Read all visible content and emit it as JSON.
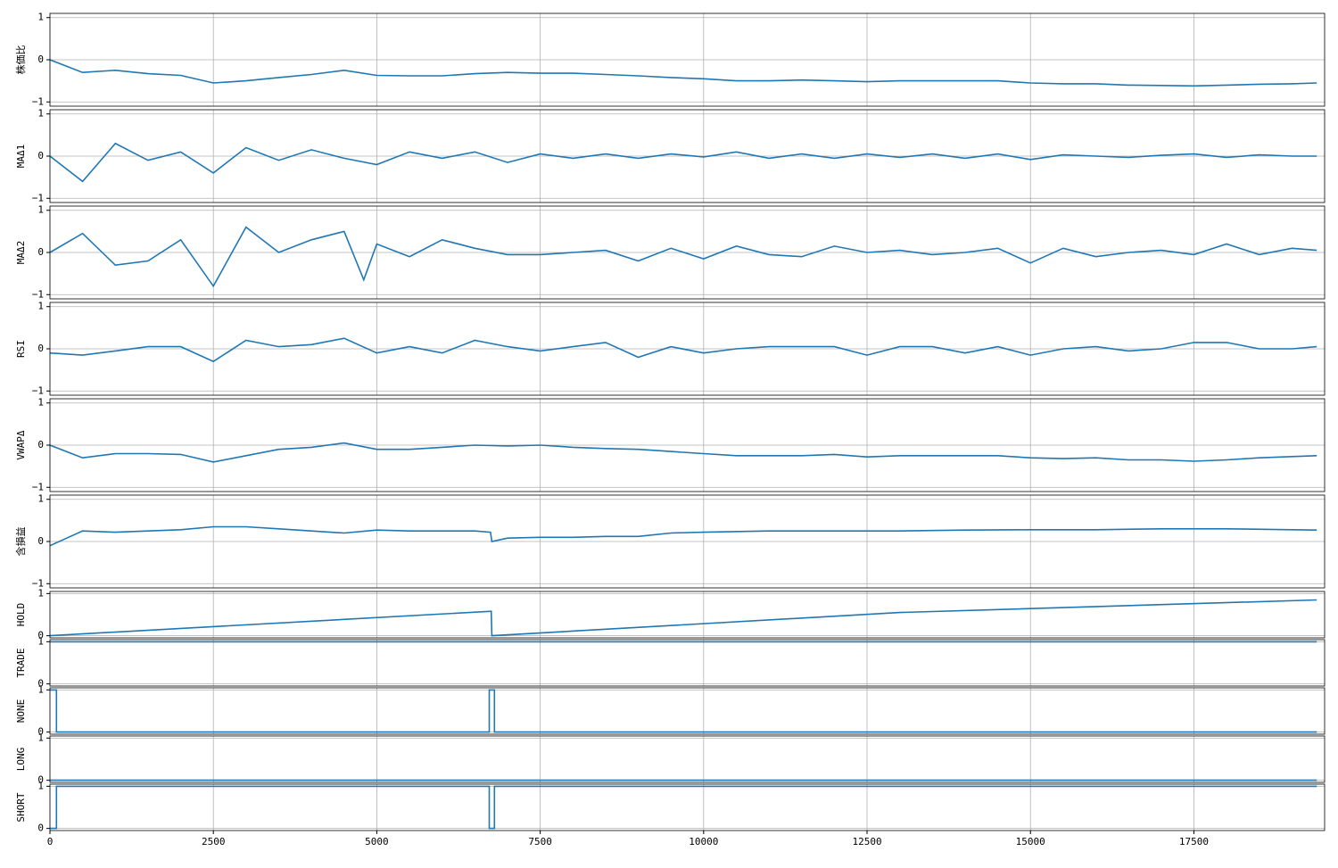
{
  "chart_data": [
    {
      "type": "line",
      "ylabel": "株価比",
      "color": "#1f77b4",
      "grid": true,
      "x": [
        0,
        500,
        1000,
        1500,
        2000,
        2500,
        3000,
        3500,
        4000,
        4500,
        5000,
        5500,
        6000,
        6500,
        7000,
        7500,
        8000,
        8500,
        9000,
        9500,
        10000,
        10500,
        11000,
        11500,
        12000,
        12500,
        13000,
        13500,
        14000,
        14500,
        15000,
        15500,
        16000,
        16500,
        17000,
        17500,
        18000,
        18500,
        19000,
        19380
      ],
      "values": [
        0,
        -0.3,
        -0.25,
        -0.33,
        -0.37,
        -0.55,
        -0.5,
        -0.42,
        -0.35,
        -0.25,
        -0.37,
        -0.38,
        -0.38,
        -0.33,
        -0.3,
        -0.32,
        -0.32,
        -0.35,
        -0.38,
        -0.42,
        -0.45,
        -0.5,
        -0.5,
        -0.48,
        -0.5,
        -0.52,
        -0.5,
        -0.5,
        -0.5,
        -0.5,
        -0.55,
        -0.57,
        -0.57,
        -0.6,
        -0.61,
        -0.62,
        -0.6,
        -0.58,
        -0.57,
        -0.55
      ],
      "ylim": [
        -1.1,
        1.1
      ],
      "yticks": [
        {
          "value": -1,
          "label": "−1"
        },
        0,
        1
      ]
    },
    {
      "type": "line",
      "ylabel": "MAΔ1",
      "color": "#1f77b4",
      "grid": true,
      "x": [
        0,
        500,
        1000,
        1500,
        2000,
        2500,
        3000,
        3500,
        4000,
        4500,
        5000,
        5500,
        6000,
        6500,
        7000,
        7500,
        8000,
        8500,
        9000,
        9500,
        10000,
        10500,
        11000,
        11500,
        12000,
        12500,
        13000,
        13500,
        14000,
        14500,
        15000,
        15500,
        16000,
        16500,
        17000,
        17500,
        18000,
        18500,
        19000,
        19380
      ],
      "values": [
        0,
        -0.6,
        0.3,
        -0.1,
        0.1,
        -0.4,
        0.2,
        -0.1,
        0.15,
        -0.05,
        -0.2,
        0.1,
        -0.05,
        0.1,
        -0.15,
        0.05,
        -0.05,
        0.05,
        -0.05,
        0.05,
        -0.02,
        0.1,
        -0.05,
        0.05,
        -0.05,
        0.05,
        -0.03,
        0.05,
        -0.05,
        0.05,
        -0.08,
        0.03,
        0,
        -0.03,
        0.02,
        0.05,
        -0.03,
        0.03,
        0,
        0
      ],
      "ylim": [
        -1.1,
        1.1
      ],
      "yticks": [
        {
          "value": -1,
          "label": "−1"
        },
        0,
        1
      ]
    },
    {
      "type": "line",
      "ylabel": "MAΔ2",
      "color": "#1f77b4",
      "grid": true,
      "x": [
        0,
        500,
        1000,
        1500,
        2000,
        2500,
        3000,
        3500,
        4000,
        4500,
        4800,
        5000,
        5500,
        6000,
        6500,
        7000,
        7500,
        8000,
        8500,
        9000,
        9500,
        10000,
        10500,
        11000,
        11500,
        12000,
        12500,
        13000,
        13500,
        14000,
        14500,
        15000,
        15500,
        16000,
        16500,
        17000,
        17500,
        18000,
        18500,
        19000,
        19380
      ],
      "values": [
        0,
        0.45,
        -0.3,
        -0.2,
        0.3,
        -0.8,
        0.6,
        0,
        0.3,
        0.5,
        -0.65,
        0.2,
        -0.1,
        0.3,
        0.1,
        -0.05,
        -0.05,
        0,
        0.05,
        -0.2,
        0.1,
        -0.15,
        0.15,
        -0.05,
        -0.1,
        0.15,
        0,
        0.05,
        -0.05,
        0,
        0.1,
        -0.25,
        0.1,
        -0.1,
        0,
        0.05,
        -0.05,
        0.2,
        -0.05,
        0.1,
        0.05
      ],
      "ylim": [
        -1.1,
        1.1
      ],
      "yticks": [
        {
          "value": -1,
          "label": "−1"
        },
        0,
        1
      ]
    },
    {
      "type": "line",
      "ylabel": "RSI",
      "color": "#1f77b4",
      "grid": true,
      "x": [
        0,
        500,
        1000,
        1500,
        2000,
        2500,
        3000,
        3500,
        4000,
        4500,
        5000,
        5500,
        6000,
        6500,
        7000,
        7500,
        8000,
        8500,
        9000,
        9500,
        10000,
        10500,
        11000,
        11500,
        12000,
        12500,
        13000,
        13500,
        14000,
        14500,
        15000,
        15500,
        16000,
        16500,
        17000,
        17500,
        18000,
        18500,
        19000,
        19380
      ],
      "values": [
        -0.1,
        -0.15,
        -0.05,
        0.05,
        0.05,
        -0.3,
        0.2,
        0.05,
        0.1,
        0.25,
        -0.1,
        0.05,
        -0.1,
        0.2,
        0.05,
        -0.05,
        0.05,
        0.15,
        -0.2,
        0.05,
        -0.1,
        0,
        0.05,
        0.05,
        0.05,
        -0.15,
        0.05,
        0.05,
        -0.1,
        0.05,
        -0.15,
        0,
        0.05,
        -0.05,
        0,
        0.15,
        0.15,
        0,
        0,
        0.05
      ],
      "ylim": [
        -1.1,
        1.1
      ],
      "yticks": [
        {
          "value": -1,
          "label": "−1"
        },
        0,
        1
      ]
    },
    {
      "type": "line",
      "ylabel": "VWAPΔ",
      "color": "#1f77b4",
      "grid": true,
      "x": [
        0,
        500,
        1000,
        1500,
        2000,
        2500,
        3000,
        3500,
        4000,
        4500,
        5000,
        5500,
        6000,
        6500,
        7000,
        7500,
        8000,
        8500,
        9000,
        9500,
        10000,
        10500,
        11000,
        11500,
        12000,
        12500,
        13000,
        13500,
        14000,
        14500,
        15000,
        15500,
        16000,
        16500,
        17000,
        17500,
        18000,
        18500,
        19000,
        19380
      ],
      "values": [
        0,
        -0.3,
        -0.2,
        -0.2,
        -0.22,
        -0.4,
        -0.25,
        -0.1,
        -0.05,
        0.05,
        -0.1,
        -0.1,
        -0.05,
        0,
        -0.02,
        0,
        -0.05,
        -0.08,
        -0.1,
        -0.15,
        -0.2,
        -0.25,
        -0.25,
        -0.25,
        -0.22,
        -0.28,
        -0.25,
        -0.25,
        -0.25,
        -0.25,
        -0.3,
        -0.32,
        -0.3,
        -0.35,
        -0.35,
        -0.38,
        -0.35,
        -0.3,
        -0.27,
        -0.25
      ],
      "ylim": [
        -1.1,
        1.1
      ],
      "yticks": [
        {
          "value": -1,
          "label": "−1"
        },
        0,
        1
      ]
    },
    {
      "type": "line",
      "ylabel": "含損益",
      "color": "#1f77b4",
      "grid": true,
      "x": [
        0,
        500,
        1000,
        1500,
        2000,
        2500,
        3000,
        3500,
        4000,
        4500,
        5000,
        5500,
        6000,
        6500,
        6740,
        6760,
        7000,
        7500,
        8000,
        8500,
        9000,
        9500,
        10000,
        11000,
        12000,
        13000,
        14000,
        15000,
        16000,
        17000,
        18000,
        19000,
        19380
      ],
      "values": [
        -0.1,
        0.25,
        0.22,
        0.25,
        0.28,
        0.35,
        0.35,
        0.3,
        0.25,
        0.2,
        0.27,
        0.25,
        0.25,
        0.25,
        0.22,
        0,
        0.08,
        0.1,
        0.1,
        0.12,
        0.12,
        0.2,
        0.22,
        0.25,
        0.25,
        0.25,
        0.27,
        0.28,
        0.28,
        0.3,
        0.3,
        0.28,
        0.27
      ],
      "ylim": [
        -1.1,
        1.1
      ],
      "yticks": [
        {
          "value": -1,
          "label": "−1"
        },
        0,
        1
      ]
    },
    {
      "type": "line",
      "ylabel": "HOLD",
      "color": "#1f77b4",
      "grid": true,
      "x": [
        0,
        6750,
        6760,
        13000,
        19380
      ],
      "values": [
        0,
        0.58,
        0,
        0.55,
        0.85
      ],
      "ylim": [
        -0.05,
        1.05
      ],
      "yticks": [
        0,
        1
      ]
    },
    {
      "type": "line",
      "ylabel": "TRADE",
      "color": "#1f77b4",
      "grid": true,
      "x": [
        0,
        19380
      ],
      "values": [
        1,
        1
      ],
      "ylim": [
        -0.05,
        1.05
      ],
      "yticks": [
        0,
        1
      ]
    },
    {
      "type": "line",
      "ylabel": "NONE",
      "color": "#1f77b4",
      "grid": true,
      "x": [
        0,
        100,
        100,
        6720,
        6720,
        6800,
        6800,
        19380
      ],
      "values": [
        1,
        1,
        0,
        0,
        1,
        1,
        0,
        0
      ],
      "ylim": [
        -0.05,
        1.05
      ],
      "yticks": [
        0,
        1
      ]
    },
    {
      "type": "line",
      "ylabel": "LONG",
      "color": "#1f77b4",
      "grid": true,
      "x": [
        0,
        19380
      ],
      "values": [
        0,
        0
      ],
      "ylim": [
        -0.05,
        1.05
      ],
      "yticks": [
        0,
        1
      ]
    },
    {
      "type": "line",
      "ylabel": "SHORT",
      "color": "#1f77b4",
      "grid": true,
      "x": [
        0,
        100,
        100,
        6720,
        6720,
        6800,
        6800,
        19380
      ],
      "values": [
        0,
        0,
        1,
        1,
        0,
        0,
        1,
        1
      ],
      "ylim": [
        -0.05,
        1.05
      ],
      "yticks": [
        0,
        1
      ],
      "xlim": [
        0,
        19500
      ],
      "xticks": [
        0,
        2500,
        5000,
        7500,
        10000,
        12500,
        15000,
        17500
      ]
    }
  ]
}
